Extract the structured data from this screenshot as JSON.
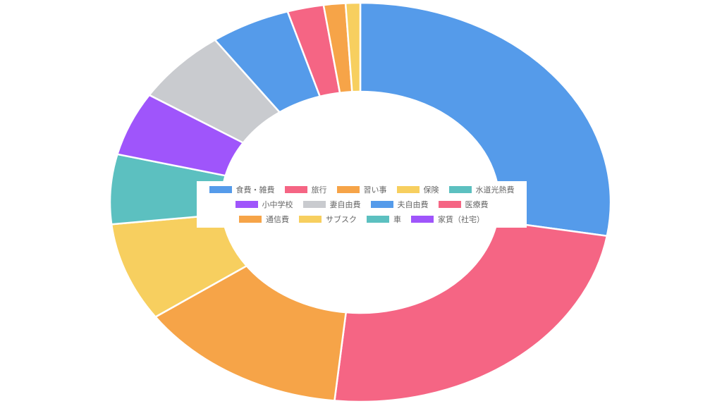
{
  "chart_data": {
    "type": "doughnut",
    "title": "",
    "legend_position": "center",
    "series": [
      {
        "name": "食費・雑費",
        "value": 29.5,
        "color": "#559bea"
      },
      {
        "name": "旅行",
        "value": 25.5,
        "color": "#f56584"
      },
      {
        "name": "習い事",
        "value": 14.5,
        "color": "#f6a448"
      },
      {
        "name": "保険",
        "value": 8.5,
        "color": "#f7cf5f"
      },
      {
        "name": "水道光熱費",
        "value": 6.0,
        "color": "#5cc0c0"
      },
      {
        "name": "小中学校",
        "value": 5.5,
        "color": "#9f55fb"
      },
      {
        "name": "妻自由費",
        "value": 6.5,
        "color": "#c9cbcf"
      },
      {
        "name": "夫自由費",
        "value": 5.5,
        "color": "#559bea"
      },
      {
        "name": "医療費",
        "value": 2.5,
        "color": "#f56584"
      },
      {
        "name": "通信費",
        "value": 1.5,
        "color": "#f6a448"
      },
      {
        "name": "サブスク",
        "value": 1.0,
        "color": "#f7cf5f"
      },
      {
        "name": "車",
        "value": 0.0,
        "color": "#5cc0c0"
      },
      {
        "name": "家賃（社宅）",
        "value": 0.0,
        "color": "#9f55fb"
      }
    ]
  }
}
